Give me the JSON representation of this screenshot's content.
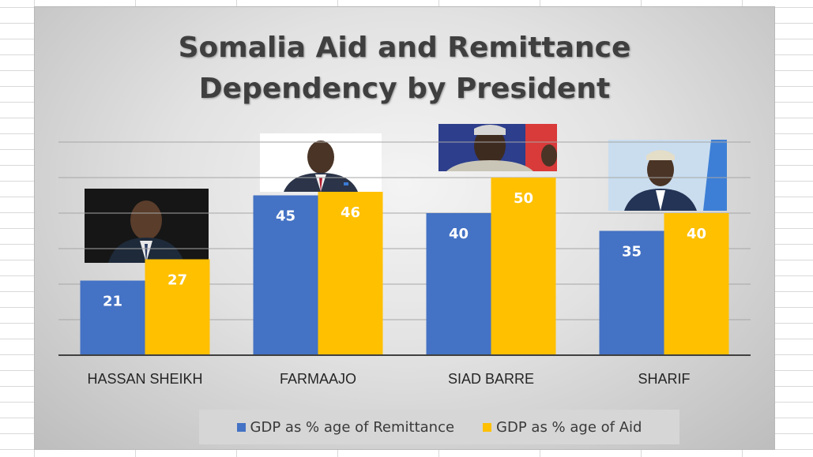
{
  "chart_data": {
    "type": "bar",
    "title": "Somalia Aid and Remittance\nDependency by President",
    "categories": [
      "HASSAN SHEIKH",
      "FARMAAJO",
      "SIAD BARRE",
      "SHARIF"
    ],
    "series": [
      {
        "name": "GDP as % age of Remittance",
        "values": [
          21,
          45,
          40,
          35
        ],
        "color": "#4472c4"
      },
      {
        "name": "GDP as % age of Aid",
        "values": [
          27,
          46,
          50,
          40
        ],
        "color": "#ffc000"
      }
    ],
    "ylim": [
      0,
      60
    ],
    "grid": true,
    "legend_position": "bottom"
  }
}
